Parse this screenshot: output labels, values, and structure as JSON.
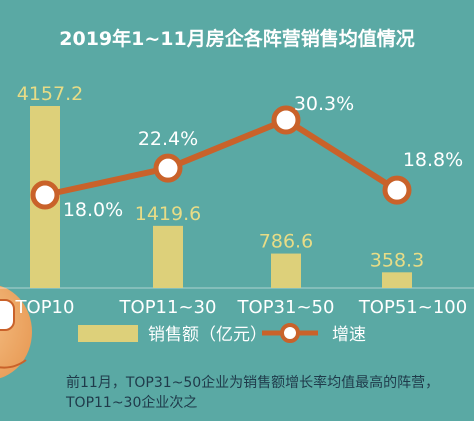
{
  "chart_data": {
    "type": "bar+line",
    "title": "2019年1~11月房企各阵营销售均值情况",
    "categories": [
      "TOP10",
      "TOP11~30",
      "TOP31~50",
      "TOP51~100"
    ],
    "series": [
      {
        "name": "销售额（亿元）",
        "type": "bar",
        "values": [
          4157.2,
          1419.6,
          786.6,
          358.3
        ],
        "value_labels": [
          "4157.2",
          "1419.6",
          "786.6",
          "358.3"
        ]
      },
      {
        "name": "增速",
        "type": "line",
        "values": [
          18.0,
          22.4,
          30.3,
          18.8
        ],
        "value_labels": [
          "18.0%",
          "22.4%",
          "30.3%",
          "18.8%"
        ]
      }
    ],
    "grid": false,
    "legend_position": "bottom"
  },
  "footnote": "前11月，TOP31~50企业为销售额增长率均值最高的阵营，TOP11~30企业次之",
  "colors": {
    "background": "#5aa9a4",
    "bar": "#ddd07a",
    "bar_label": "#e8dc86",
    "line": "#c9622a",
    "marker_fill": "#ffffff",
    "text": "#ffffff",
    "note": "#1f3a4a"
  }
}
